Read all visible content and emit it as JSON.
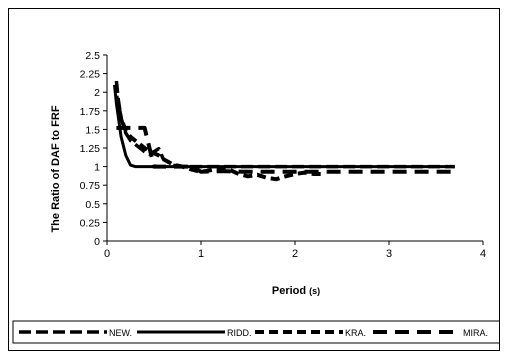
{
  "chart_data": {
    "type": "line",
    "title": "",
    "xlabel": "Period",
    "xlabel_unit": "(s)",
    "ylabel": "The Ratio of DAF to FRF",
    "xlim": [
      0,
      4
    ],
    "ylim": [
      0,
      2.5
    ],
    "x_ticks": [
      "0",
      "1",
      "2",
      "3",
      "4"
    ],
    "y_ticks": [
      "0",
      "0.25",
      "0.5",
      "0.75",
      "1",
      "1.25",
      "1.5",
      "1.75",
      "2",
      "2.25",
      "2.5"
    ],
    "grid": false,
    "legend_position": "bottom",
    "series": [
      {
        "name": "NEW.",
        "style": "long-dash",
        "x": [
          0.1,
          0.12,
          0.15,
          0.2,
          0.25,
          0.3,
          0.35,
          0.4,
          0.45,
          0.5,
          0.55,
          0.6,
          0.7,
          0.8,
          0.9,
          1.0,
          1.2,
          1.5,
          2.0,
          2.5,
          3.0,
          3.5,
          3.7
        ],
        "y": [
          2.15,
          1.9,
          1.65,
          1.45,
          1.35,
          1.3,
          1.25,
          1.2,
          1.17,
          1.2,
          1.24,
          1.1,
          1.02,
          1.0,
          1.0,
          1.0,
          1.0,
          1.0,
          1.0,
          1.0,
          1.0,
          1.0,
          1.0
        ]
      },
      {
        "name": "RIDD.",
        "style": "solid",
        "x": [
          0.08,
          0.1,
          0.15,
          0.2,
          0.25,
          0.3,
          0.5,
          1.0,
          1.5,
          2.0,
          2.5,
          3.0,
          3.5,
          3.7
        ],
        "y": [
          2.1,
          1.85,
          1.4,
          1.15,
          1.02,
          1.0,
          1.0,
          1.0,
          1.0,
          1.0,
          1.0,
          1.0,
          1.0,
          1.0
        ]
      },
      {
        "name": "KRA.",
        "style": "dash",
        "x": [
          0.1,
          0.15,
          0.2,
          0.25,
          0.3,
          0.35,
          0.4,
          0.45,
          0.5,
          0.55,
          0.6,
          0.7,
          0.8,
          0.9,
          1.0,
          1.1,
          1.2,
          1.3,
          1.4,
          1.5,
          1.6,
          1.7,
          1.8,
          1.9,
          2.0,
          2.1,
          2.2,
          2.3
        ],
        "y": [
          1.95,
          1.65,
          1.48,
          1.4,
          1.35,
          1.3,
          1.25,
          1.2,
          1.18,
          1.15,
          1.1,
          1.03,
          1.0,
          0.96,
          0.93,
          0.95,
          0.98,
          0.96,
          0.9,
          0.87,
          0.89,
          0.85,
          0.83,
          0.87,
          0.9,
          0.92,
          0.9,
          0.9
        ]
      },
      {
        "name": "MIRA.",
        "style": "dash-gap",
        "x": [
          0.1,
          0.15,
          0.2,
          0.25,
          0.3,
          0.4,
          0.5,
          0.6,
          0.7,
          0.8,
          0.9,
          1.0,
          1.2,
          1.5,
          2.0,
          2.5,
          3.0,
          3.5,
          3.7
        ],
        "y": [
          1.52,
          1.52,
          1.52,
          1.52,
          1.52,
          1.52,
          1.0,
          1.0,
          1.0,
          1.0,
          1.0,
          0.93,
          0.94,
          0.93,
          0.93,
          0.93,
          0.93,
          0.93,
          0.93
        ]
      }
    ]
  }
}
